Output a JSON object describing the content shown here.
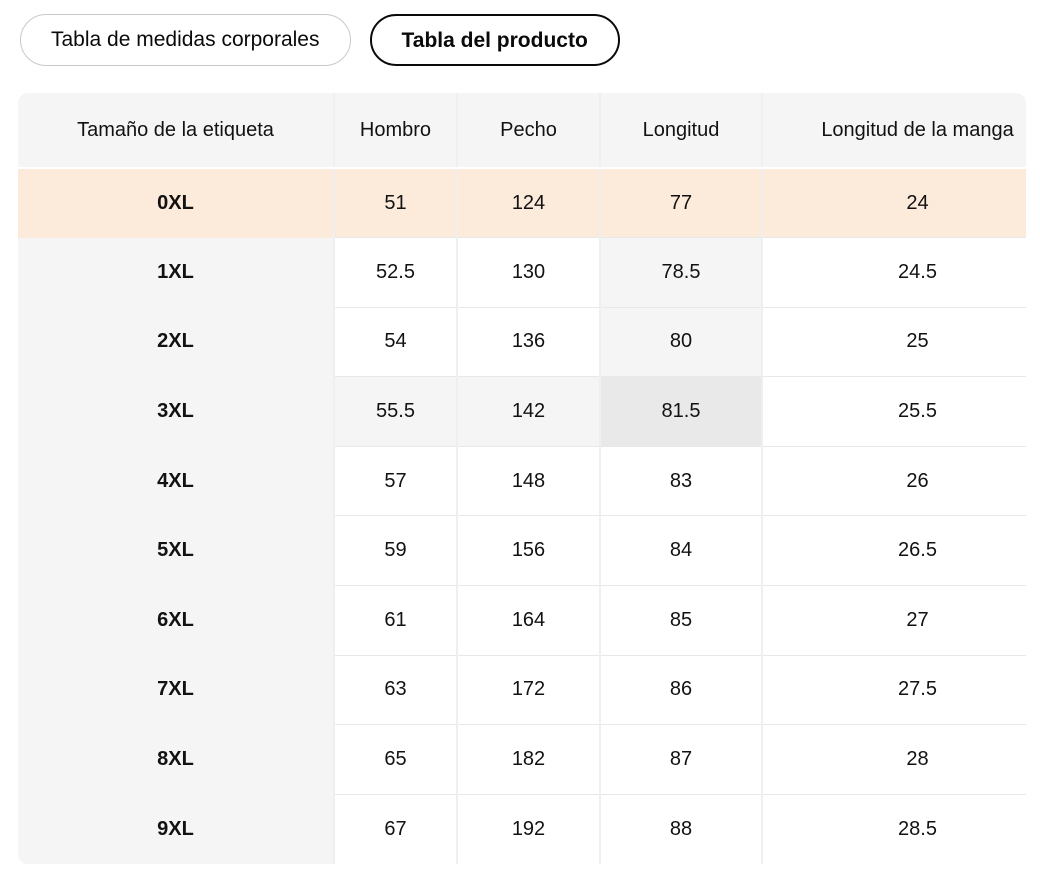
{
  "tabs": [
    {
      "label": "Tabla de medidas corporales",
      "selected": false
    },
    {
      "label": "Tabla del producto",
      "selected": true
    }
  ],
  "table": {
    "columns": [
      "Tamaño de la etiqueta",
      "Hombro",
      "Pecho",
      "Longitud",
      "Longitud de la manga"
    ],
    "rows": [
      {
        "label": "0XL",
        "values": [
          "51",
          "124",
          "77",
          "24"
        ]
      },
      {
        "label": "1XL",
        "values": [
          "52.5",
          "130",
          "78.5",
          "24.5"
        ]
      },
      {
        "label": "2XL",
        "values": [
          "54",
          "136",
          "80",
          "25"
        ]
      },
      {
        "label": "3XL",
        "values": [
          "55.5",
          "142",
          "81.5",
          "25.5"
        ]
      },
      {
        "label": "4XL",
        "values": [
          "57",
          "148",
          "83",
          "26"
        ]
      },
      {
        "label": "5XL",
        "values": [
          "59",
          "156",
          "84",
          "26.5"
        ]
      },
      {
        "label": "6XL",
        "values": [
          "61",
          "164",
          "85",
          "27"
        ]
      },
      {
        "label": "7XL",
        "values": [
          "63",
          "172",
          "86",
          "27.5"
        ]
      },
      {
        "label": "8XL",
        "values": [
          "65",
          "182",
          "87",
          "28"
        ]
      },
      {
        "label": "9XL",
        "values": [
          "67",
          "192",
          "88",
          "28.5"
        ]
      }
    ],
    "selected_row": "0XL",
    "hovered_cell": {
      "row": "3XL",
      "column": "Longitud"
    },
    "colors": {
      "selected_row_bg": "#FCEADB",
      "hover_path_bg": "#F5F5F6",
      "hover_cell_bg": "#E9E9E9",
      "header_bg": "#F5F5F6",
      "selected_tab_border": "#0A0A0A",
      "unselected_tab_border": "#C9C9C9"
    }
  }
}
